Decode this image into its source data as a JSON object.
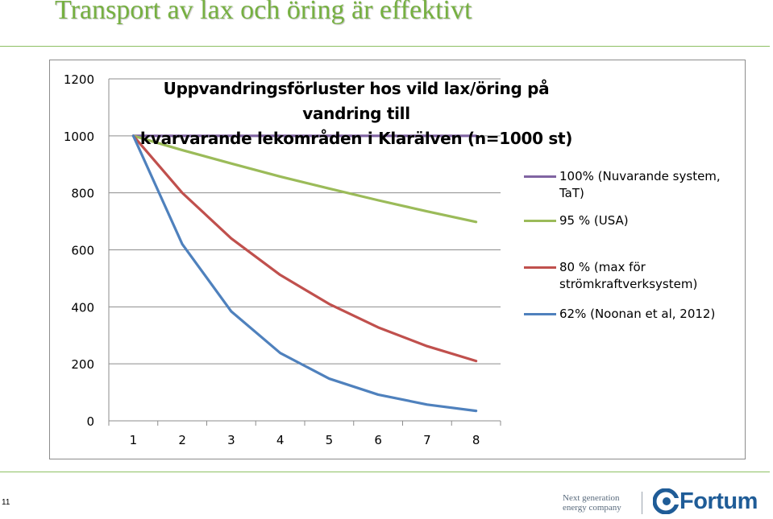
{
  "slide": {
    "title": "Transport av lax och öring är effektivt",
    "page_number": "11",
    "footer": {
      "tagline_line1": "Next generation",
      "tagline_line2": "energy company",
      "logo_text": "Fortum"
    }
  },
  "chart_data": {
    "type": "line",
    "title_line1": "Uppvandringsförluster hos vild lax/öring på vandring till",
    "title_line2": "kvarvarande lekområden i Klarälven (n=1000 st)",
    "xlabel": "",
    "ylabel": "",
    "x": [
      1,
      2,
      3,
      4,
      5,
      6,
      7,
      8
    ],
    "ylim": [
      0,
      1200
    ],
    "yticks": [
      0,
      200,
      400,
      600,
      800,
      1000,
      1200
    ],
    "grid": true,
    "legend_position": "right",
    "series": [
      {
        "name": "100% (Nuvarande system, TaT)",
        "color": "#8064a2",
        "values": [
          1000,
          1000,
          1000,
          1000,
          1000,
          1000,
          1000,
          1000
        ]
      },
      {
        "name": "95 % (USA)",
        "color": "#9bbb59",
        "values": [
          1000,
          950,
          903,
          857,
          815,
          774,
          735,
          698
        ]
      },
      {
        "name": "80 % (max för strömkraftverksystem)",
        "color": "#c0504d",
        "values": [
          1000,
          800,
          640,
          512,
          410,
          328,
          262,
          210
        ]
      },
      {
        "name": "62% (Noonan et al, 2012)",
        "color": "#4f81bd",
        "values": [
          1000,
          620,
          384,
          238,
          148,
          92,
          57,
          35
        ]
      }
    ]
  }
}
